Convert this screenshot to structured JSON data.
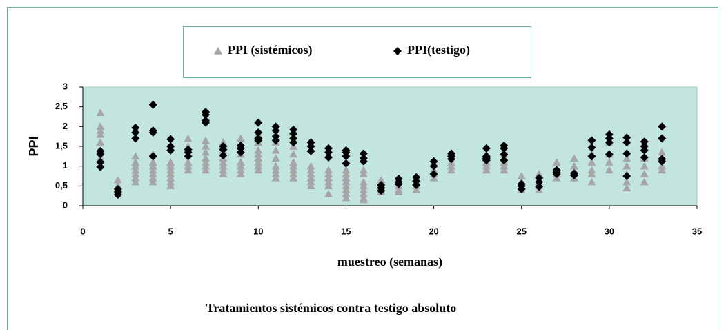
{
  "chart_data": {
    "type": "scatter",
    "xlabel": "muestreo (semanas)",
    "ylabel": "PPI",
    "caption": "Tratamientos sistémicos contra testigo absoluto",
    "xlim": [
      0,
      35
    ],
    "xticks": [
      0,
      5,
      10,
      15,
      20,
      25,
      30,
      35
    ],
    "ylim": [
      0,
      3
    ],
    "yticks": [
      0,
      {
        "value": 0.5,
        "label": "0,5"
      },
      1,
      {
        "value": 1.5,
        "label": "1,5"
      },
      2,
      {
        "value": 2.5,
        "label": "2,5"
      },
      3
    ],
    "plot_background": "#c3e5df",
    "series": [
      {
        "name": "PPI (sistémicos)",
        "color": "#a6a6a6",
        "marker": "triangle",
        "x": [
          1,
          1,
          1,
          1,
          1,
          1,
          1,
          2,
          2,
          2,
          2,
          3,
          3,
          3,
          3,
          3,
          3,
          3,
          4,
          4,
          4,
          4,
          4,
          4,
          4,
          5,
          5,
          5,
          5,
          5,
          5,
          5,
          6,
          6,
          6,
          6,
          6,
          6,
          7,
          7,
          7,
          7,
          7,
          7,
          7,
          8,
          8,
          8,
          8,
          8,
          8,
          8,
          9,
          9,
          9,
          9,
          9,
          9,
          9,
          10,
          10,
          10,
          10,
          10,
          10,
          10,
          10,
          11,
          11,
          11,
          11,
          11,
          11,
          11,
          12,
          12,
          12,
          12,
          12,
          12,
          12,
          13,
          13,
          13,
          13,
          13,
          13,
          14,
          14,
          14,
          14,
          14,
          14,
          15,
          15,
          15,
          15,
          15,
          15,
          15,
          15,
          16,
          16,
          16,
          16,
          16,
          16,
          16,
          16,
          17,
          17,
          17,
          17,
          18,
          18,
          18,
          18,
          19,
          19,
          19,
          20,
          20,
          20,
          21,
          21,
          21,
          21,
          23,
          23,
          23,
          23,
          24,
          24,
          24,
          24,
          25,
          25,
          25,
          25,
          26,
          26,
          26,
          26,
          27,
          27,
          27,
          27,
          28,
          28,
          28,
          28,
          29,
          29,
          29,
          29,
          29,
          30,
          30,
          30,
          30,
          31,
          31,
          31,
          31,
          31,
          32,
          32,
          32,
          32,
          33,
          33,
          33,
          33
        ],
        "values": [
          2.35,
          2.0,
          1.9,
          1.8,
          1.6,
          1.4,
          1.2,
          0.65,
          0.5,
          0.4,
          0.3,
          1.25,
          1.1,
          1.0,
          0.9,
          0.8,
          0.7,
          0.6,
          1.3,
          1.1,
          1.0,
          0.9,
          0.8,
          0.7,
          0.6,
          1.1,
          1.0,
          0.9,
          0.8,
          0.7,
          0.6,
          0.5,
          1.7,
          1.5,
          1.3,
          1.1,
          1.0,
          0.9,
          1.65,
          1.5,
          1.35,
          1.2,
          1.1,
          1.0,
          0.9,
          1.6,
          1.4,
          1.2,
          1.1,
          1.0,
          0.9,
          0.8,
          1.7,
          1.5,
          1.3,
          1.1,
          1.0,
          0.9,
          0.8,
          1.8,
          1.6,
          1.4,
          1.3,
          1.2,
          1.1,
          1.0,
          0.9,
          1.6,
          1.4,
          1.2,
          1.0,
          0.9,
          0.8,
          0.7,
          1.5,
          1.3,
          1.1,
          1.0,
          0.9,
          0.8,
          0.7,
          1.0,
          0.9,
          0.8,
          0.7,
          0.6,
          0.5,
          0.9,
          0.8,
          0.7,
          0.6,
          0.5,
          0.3,
          0.9,
          0.8,
          0.7,
          0.6,
          0.5,
          0.4,
          0.3,
          0.2,
          0.9,
          0.8,
          0.6,
          0.5,
          0.4,
          0.3,
          0.2,
          0.15,
          0.65,
          0.5,
          0.4,
          0.35,
          0.6,
          0.5,
          0.4,
          0.35,
          0.6,
          0.5,
          0.4,
          0.9,
          0.8,
          0.7,
          1.3,
          1.1,
          1.0,
          0.9,
          1.3,
          1.1,
          1.0,
          0.9,
          1.3,
          1.1,
          1.0,
          0.9,
          0.75,
          0.6,
          0.5,
          0.4,
          0.8,
          0.6,
          0.5,
          0.4,
          1.1,
          0.9,
          0.8,
          0.7,
          1.2,
          1.0,
          0.8,
          0.7,
          1.3,
          1.1,
          0.9,
          0.8,
          0.6,
          1.6,
          1.3,
          1.1,
          0.9,
          1.2,
          1.0,
          0.8,
          0.6,
          0.45,
          1.2,
          1.0,
          0.8,
          0.6,
          1.35,
          1.2,
          1.0,
          0.9
        ]
      },
      {
        "name": "PPI(testigo)",
        "color": "#000000",
        "marker": "diamond",
        "x": [
          1,
          1,
          1,
          1,
          2,
          2,
          2,
          3,
          3,
          3,
          4,
          4,
          4,
          4,
          5,
          5,
          5,
          6,
          6,
          6,
          7,
          7,
          7,
          7,
          8,
          8,
          8,
          9,
          9,
          9,
          10,
          10,
          10,
          10,
          11,
          11,
          11,
          11,
          12,
          12,
          12,
          12,
          13,
          13,
          13,
          14,
          14,
          14,
          15,
          15,
          15,
          15,
          16,
          16,
          16,
          17,
          17,
          17,
          18,
          18,
          18,
          19,
          19,
          19,
          20,
          20,
          20,
          21,
          21,
          21,
          23,
          23,
          23,
          23,
          24,
          24,
          24,
          24,
          25,
          25,
          25,
          26,
          26,
          26,
          27,
          27,
          27,
          28,
          28,
          29,
          29,
          29,
          30,
          30,
          30,
          30,
          31,
          31,
          31,
          31,
          32,
          32,
          32,
          32,
          33,
          33,
          33,
          33
        ],
        "values": [
          1.38,
          1.3,
          1.1,
          0.98,
          0.42,
          0.35,
          0.28,
          1.97,
          1.85,
          1.7,
          2.55,
          1.9,
          1.85,
          1.25,
          1.68,
          1.5,
          1.4,
          1.42,
          1.35,
          1.25,
          2.37,
          2.3,
          2.15,
          2.1,
          1.5,
          1.42,
          1.27,
          1.52,
          1.45,
          1.35,
          2.1,
          1.85,
          1.7,
          1.65,
          2.0,
          1.9,
          1.75,
          1.65,
          1.92,
          1.82,
          1.7,
          1.6,
          1.6,
          1.5,
          1.38,
          1.45,
          1.35,
          1.22,
          1.4,
          1.35,
          1.25,
          1.07,
          1.32,
          1.2,
          1.12,
          0.52,
          0.45,
          0.38,
          0.68,
          0.6,
          0.55,
          0.72,
          0.62,
          0.52,
          1.12,
          1.0,
          0.8,
          1.32,
          1.25,
          1.18,
          1.45,
          1.25,
          1.2,
          1.15,
          1.52,
          1.45,
          1.3,
          1.15,
          0.55,
          0.5,
          0.42,
          0.7,
          0.6,
          0.48,
          0.9,
          0.85,
          0.8,
          0.82,
          0.77,
          1.65,
          1.47,
          1.25,
          1.8,
          1.7,
          1.6,
          1.3,
          1.72,
          1.6,
          1.32,
          0.75,
          1.62,
          1.5,
          1.4,
          1.22,
          2.0,
          1.7,
          1.18,
          1.12
        ]
      }
    ]
  }
}
